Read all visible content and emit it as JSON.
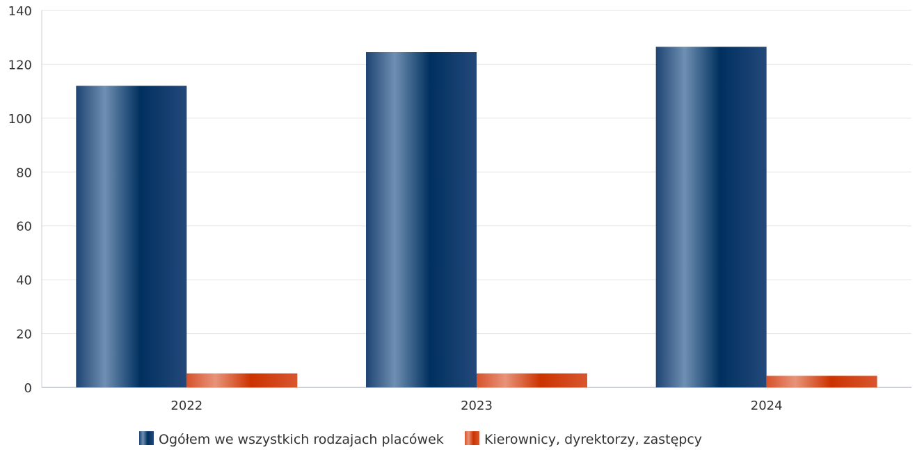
{
  "chart_data": {
    "type": "bar",
    "categories": [
      "2022",
      "2023",
      "2024"
    ],
    "series": [
      {
        "name": "Ogółem we wszystkich rodzajach placówek",
        "values": [
          112,
          124.5,
          126.5
        ],
        "color": "#00305f"
      },
      {
        "name": "Kierownicy, dyrektorzy, zastępcy",
        "values": [
          5.2,
          5.2,
          4.3
        ],
        "color": "#d23a0a"
      }
    ],
    "yticks": [
      "0",
      "20",
      "40",
      "60",
      "80",
      "100",
      "120",
      "140"
    ],
    "ylim": [
      0,
      140
    ],
    "grid": true,
    "legend_position": "bottom-center",
    "title": "",
    "xlabel": "",
    "ylabel": ""
  }
}
